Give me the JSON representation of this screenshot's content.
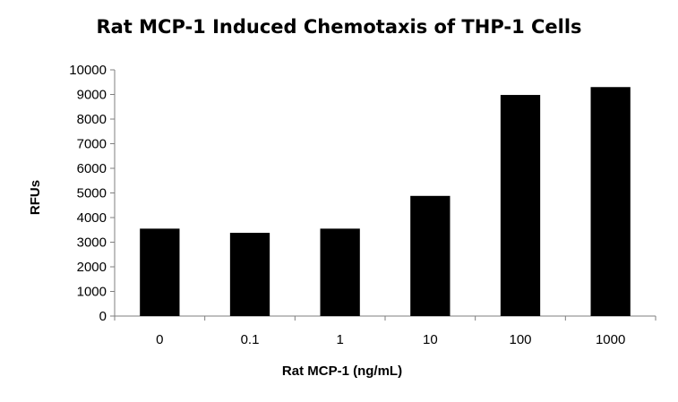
{
  "chart_data": {
    "type": "bar",
    "title": "Rat MCP-1 Induced Chemotaxis of THP-1 Cells",
    "xlabel": "Rat MCP-1 (ng/mL)",
    "ylabel": "RFUs",
    "categories": [
      "0",
      "0.1",
      "1",
      "10",
      "100",
      "1000"
    ],
    "values": [
      3550,
      3380,
      3550,
      4880,
      8980,
      9300
    ],
    "ylim": [
      0,
      10000
    ],
    "yticks": [
      0,
      1000,
      2000,
      3000,
      4000,
      5000,
      6000,
      7000,
      8000,
      9000,
      10000
    ],
    "grid": false,
    "legend": "none",
    "bar_color": "#000000",
    "axis_color": "#7f7f7f"
  }
}
